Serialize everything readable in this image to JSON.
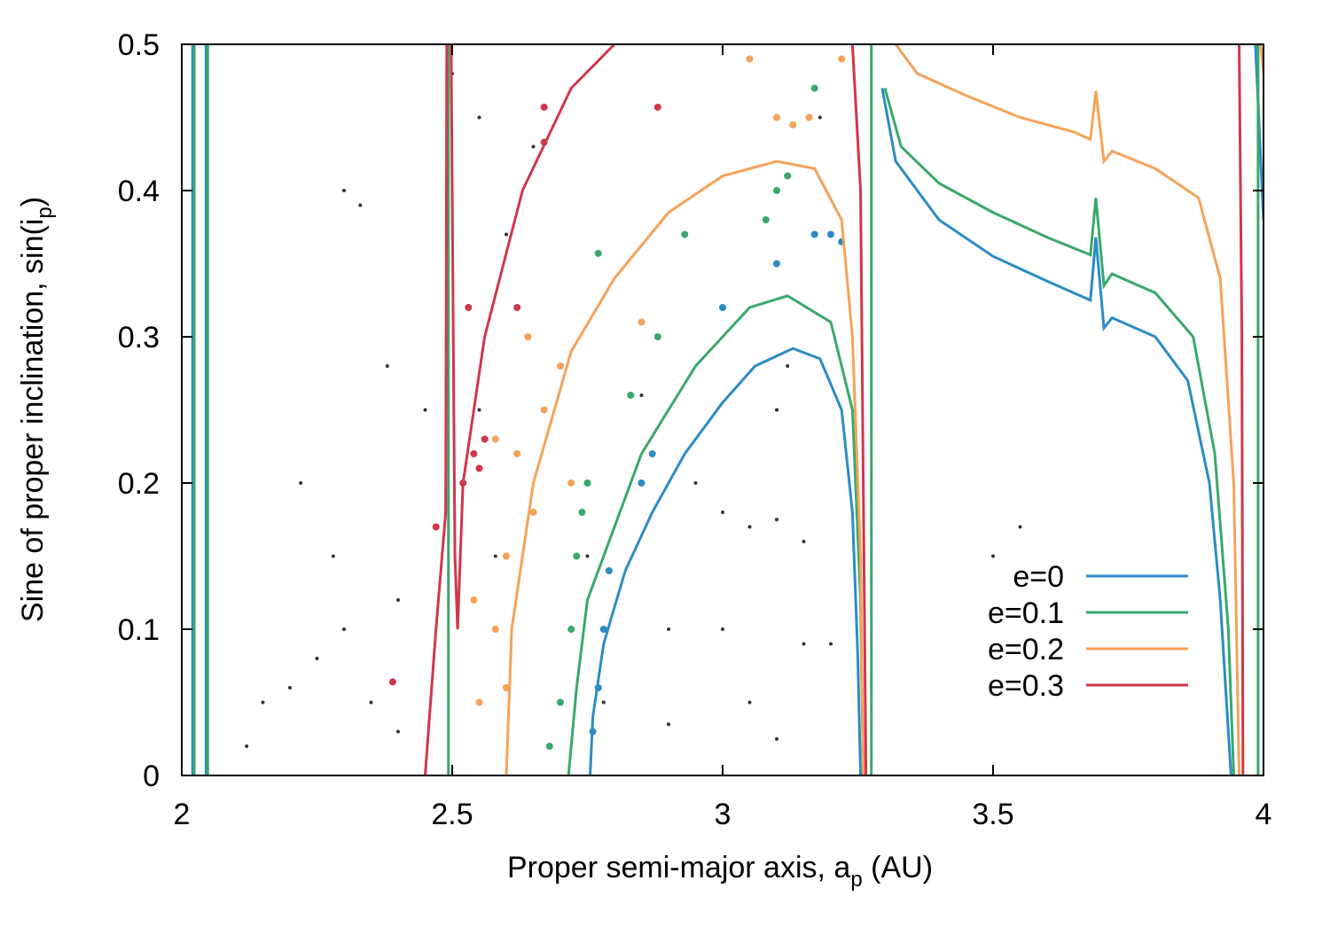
{
  "chart_data": {
    "type": "line",
    "xlabel": [
      "Proper semi-major axis, a",
      "p",
      " (AU)"
    ],
    "ylabel": [
      "Sine of proper inclination, sin(i",
      "p",
      ")"
    ],
    "xlim": [
      2,
      4
    ],
    "ylim": [
      0,
      0.5
    ],
    "xticks": [
      2,
      2.5,
      3,
      3.5,
      4
    ],
    "yticks": [
      0,
      0.1,
      0.2,
      0.3,
      0.4,
      0.5
    ],
    "grid": false,
    "legend": "lower right",
    "series": [
      {
        "name": "e=0",
        "color": "#2b8cc4",
        "x": [
          2.02,
          2.02,
          null,
          2.045,
          2.045,
          null,
          2.755,
          2.76,
          2.78,
          2.82,
          2.87,
          2.93,
          3.0,
          3.06,
          3.13,
          3.18,
          3.22,
          3.24,
          3.25,
          3.255,
          null,
          3.295,
          3.32,
          3.4,
          3.5,
          3.6,
          3.68,
          3.69,
          3.705,
          3.72,
          3.8,
          3.86,
          3.9,
          3.92,
          3.935,
          3.94,
          null,
          3.985,
          4.0
        ],
        "values": [
          0,
          0.5,
          null,
          0.5,
          0,
          null,
          0,
          0.04,
          0.09,
          0.14,
          0.18,
          0.22,
          0.255,
          0.28,
          0.292,
          0.285,
          0.25,
          0.18,
          0.08,
          0,
          null,
          0.47,
          0.42,
          0.38,
          0.355,
          0.338,
          0.325,
          0.368,
          0.306,
          0.313,
          0.3,
          0.27,
          0.2,
          0.12,
          0.03,
          0,
          null,
          0.5,
          0.38
        ]
      },
      {
        "name": "e=0.1",
        "color": "#3aa86b",
        "x": [
          2.023,
          2.023,
          null,
          2.048,
          2.048,
          null,
          2.493,
          2.493,
          null,
          2.715,
          2.73,
          2.75,
          2.85,
          2.95,
          3.05,
          3.12,
          3.2,
          3.24,
          3.255,
          3.26,
          null,
          3.275,
          3.275,
          null,
          3.3,
          3.33,
          3.4,
          3.5,
          3.6,
          3.68,
          3.69,
          3.705,
          3.72,
          3.8,
          3.87,
          3.91,
          3.935,
          3.945,
          null,
          3.99,
          3.99
        ],
        "values": [
          0,
          0.5,
          null,
          0.5,
          0,
          null,
          0,
          0.5,
          null,
          0,
          0.06,
          0.12,
          0.22,
          0.28,
          0.32,
          0.328,
          0.31,
          0.25,
          0.12,
          0,
          null,
          0.5,
          0,
          null,
          0.47,
          0.43,
          0.405,
          0.385,
          0.368,
          0.356,
          0.395,
          0.335,
          0.343,
          0.33,
          0.3,
          0.22,
          0.1,
          0,
          null,
          0.5,
          0
        ]
      },
      {
        "name": "e=0.2",
        "color": "#f5a25a",
        "x": [
          2.6,
          2.61,
          2.65,
          2.72,
          2.8,
          2.9,
          3.0,
          3.1,
          3.17,
          3.22,
          3.24,
          3.255,
          3.26,
          null,
          3.32,
          3.36,
          3.45,
          3.55,
          3.65,
          3.68,
          3.69,
          3.705,
          3.72,
          3.8,
          3.88,
          3.92,
          3.945,
          3.955,
          null,
          3.995,
          4.0
        ],
        "values": [
          0,
          0.1,
          0.2,
          0.29,
          0.34,
          0.385,
          0.41,
          0.42,
          0.415,
          0.38,
          0.3,
          0.15,
          0,
          null,
          0.5,
          0.48,
          0.465,
          0.45,
          0.44,
          0.435,
          0.468,
          0.42,
          0.427,
          0.415,
          0.395,
          0.34,
          0.2,
          0,
          null,
          0.5,
          0.48
        ]
      },
      {
        "name": "e=0.3",
        "color": "#d1364a",
        "x": [
          2.45,
          2.47,
          2.488,
          2.49,
          null,
          2.498,
          2.505,
          2.51,
          2.52,
          2.56,
          2.63,
          2.72,
          2.8,
          null,
          3.24,
          3.255,
          3.26,
          3.265,
          null,
          3.955,
          3.96,
          3.962
        ],
        "values": [
          0,
          0.1,
          0.18,
          0.5,
          null,
          0.5,
          0.15,
          0.1,
          0.2,
          0.3,
          0.4,
          0.47,
          0.5,
          null,
          0.5,
          0.4,
          0.2,
          0,
          null,
          0.5,
          0.3,
          0
        ]
      }
    ],
    "scatter_groups": [
      {
        "color": "#333333",
        "x": [
          2.3,
          2.25,
          2.35,
          2.4,
          2.2,
          2.3,
          2.33,
          2.28,
          2.4,
          2.15,
          2.55,
          2.6,
          2.58,
          2.75,
          2.78,
          2.9,
          2.9,
          3.0,
          3.05,
          3.1,
          3.15,
          3.1,
          3.12,
          3.05,
          3.1,
          3.15,
          3.2,
          3.18,
          2.55,
          2.65,
          3.5,
          3.55,
          2.38,
          2.45,
          2.85,
          2.95,
          3.0,
          2.12,
          2.22,
          2.5
        ],
        "values": [
          0.1,
          0.08,
          0.05,
          0.12,
          0.06,
          0.4,
          0.39,
          0.15,
          0.03,
          0.05,
          0.25,
          0.37,
          0.15,
          0.15,
          0.05,
          0.035,
          0.1,
          0.18,
          0.17,
          0.175,
          0.16,
          0.25,
          0.28,
          0.05,
          0.025,
          0.09,
          0.09,
          0.45,
          0.45,
          0.43,
          0.15,
          0.17,
          0.28,
          0.25,
          0.26,
          0.2,
          0.1,
          0.02,
          0.2,
          0.48
        ]
      },
      {
        "color": "#f5a25a",
        "x": [
          2.55,
          2.58,
          2.6,
          2.62,
          2.65,
          2.67,
          2.6,
          2.7,
          2.64,
          2.72,
          2.58,
          2.54,
          3.1,
          3.13,
          3.16,
          2.85,
          3.05,
          3.22
        ],
        "values": [
          0.05,
          0.1,
          0.15,
          0.22,
          0.18,
          0.25,
          0.06,
          0.28,
          0.3,
          0.2,
          0.23,
          0.12,
          0.45,
          0.445,
          0.45,
          0.31,
          0.49,
          0.49
        ]
      },
      {
        "color": "#3aa86b",
        "x": [
          2.7,
          2.72,
          2.73,
          2.75,
          2.74,
          2.68,
          2.83,
          2.88,
          3.08,
          3.1,
          3.12,
          3.17,
          2.93,
          2.77
        ],
        "values": [
          0.05,
          0.1,
          0.15,
          0.2,
          0.18,
          0.02,
          0.26,
          0.3,
          0.38,
          0.4,
          0.41,
          0.47,
          0.37,
          0.357
        ]
      },
      {
        "color": "#2b8cc4",
        "x": [
          2.76,
          2.77,
          2.78,
          2.79,
          2.85,
          2.87,
          3.17,
          3.2,
          3.22,
          3.1,
          3.0
        ],
        "values": [
          0.03,
          0.06,
          0.1,
          0.14,
          0.2,
          0.22,
          0.37,
          0.37,
          0.365,
          0.35,
          0.32
        ]
      },
      {
        "color": "#d1364a",
        "x": [
          2.52,
          2.54,
          2.56,
          2.55,
          2.53,
          2.62,
          2.67,
          2.88,
          2.67,
          2.39,
          2.47
        ],
        "values": [
          0.2,
          0.22,
          0.23,
          0.21,
          0.32,
          0.32,
          0.457,
          0.457,
          0.433,
          0.064,
          0.17
        ]
      }
    ]
  }
}
